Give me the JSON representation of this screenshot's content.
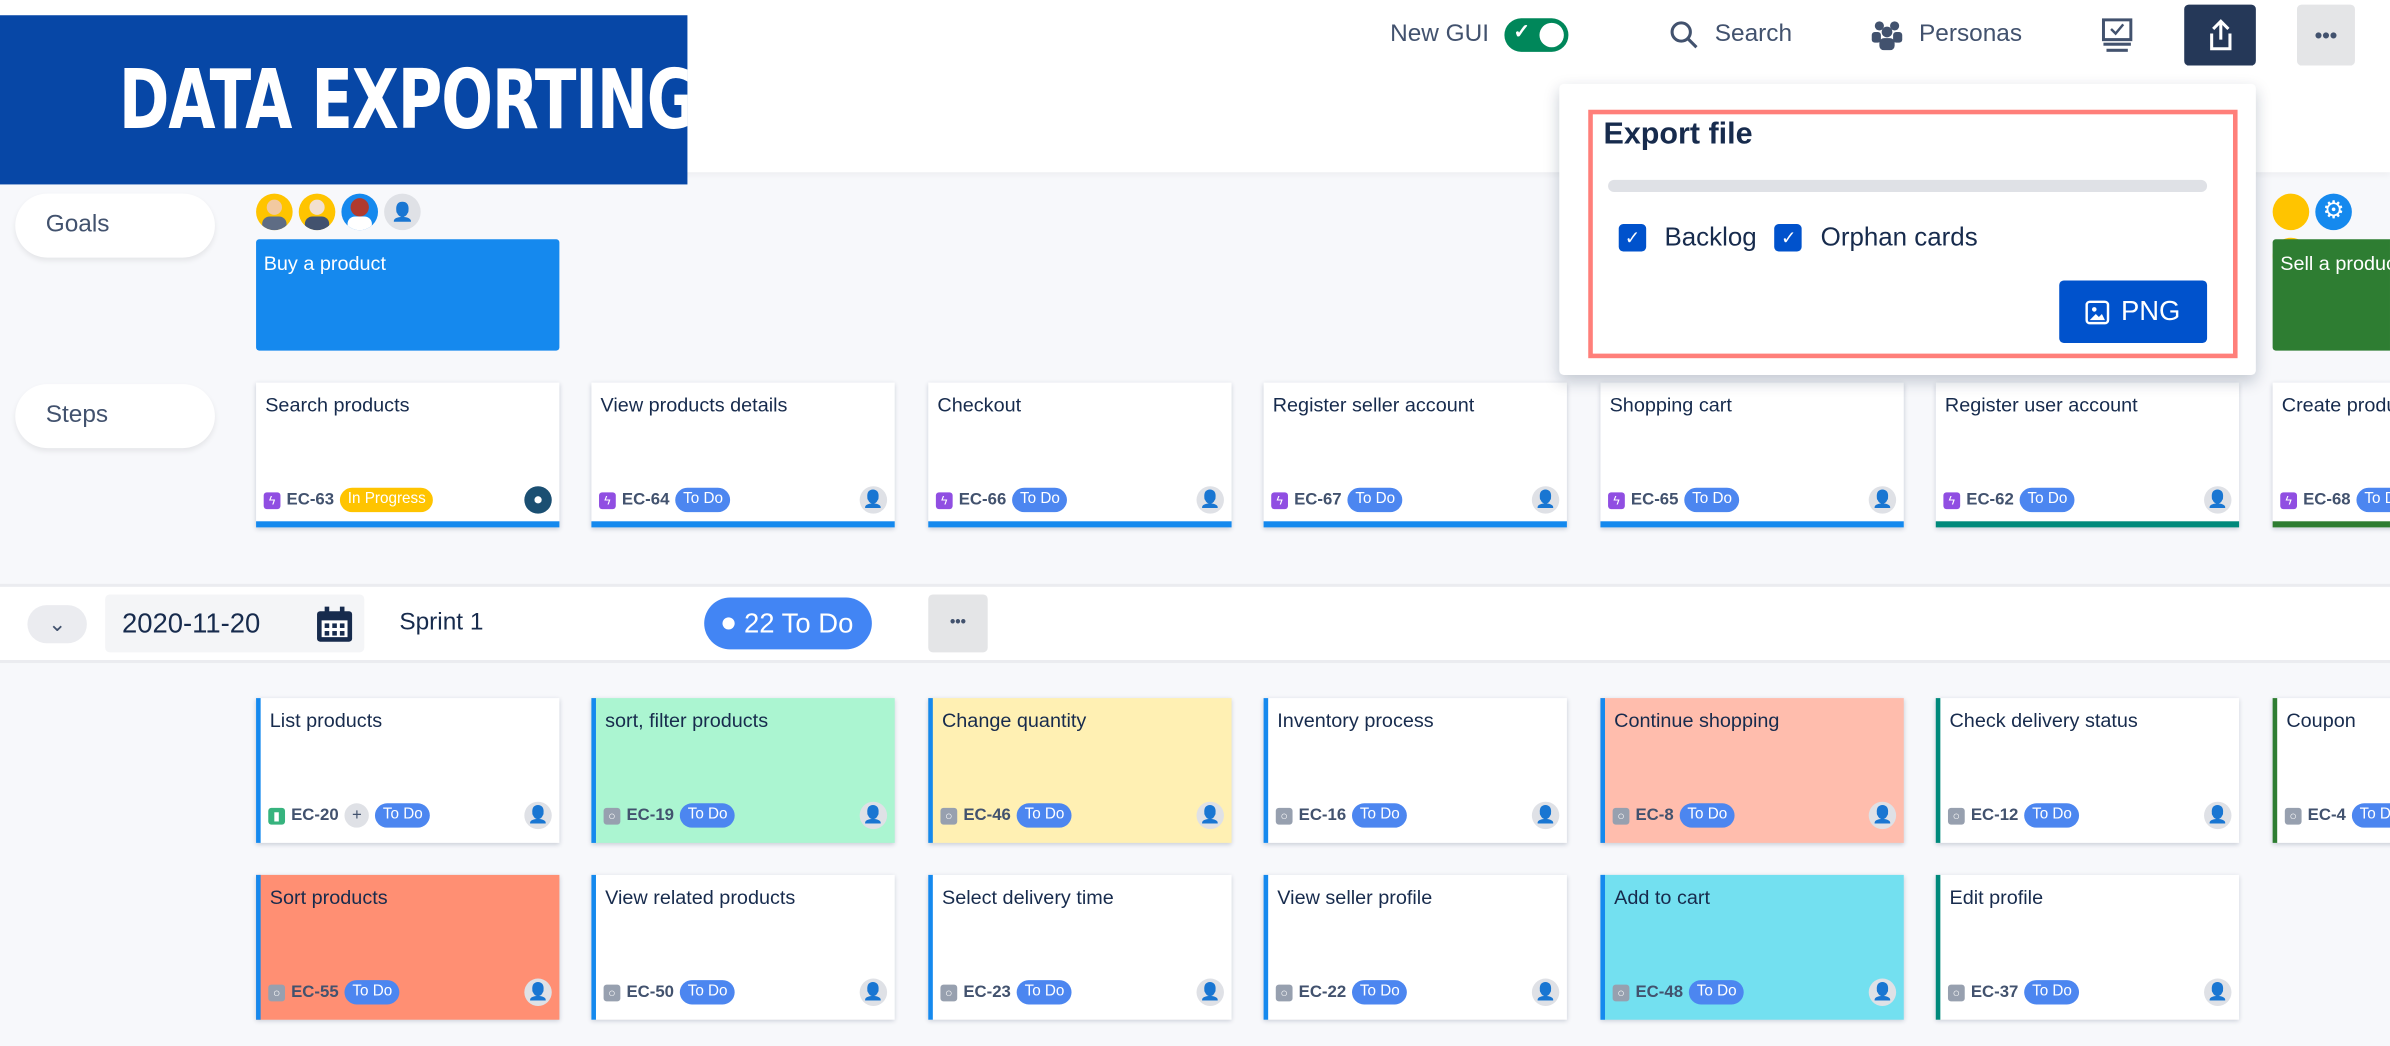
{
  "banner": {
    "title": "DATA EXPORTING"
  },
  "topbar": {
    "new_gui_label": "New GUI",
    "new_gui_enabled": true,
    "search_label": "Search",
    "personas_label": "Personas"
  },
  "rows": {
    "goals_label": "Goals",
    "steps_label": "Steps"
  },
  "goals": [
    {
      "title": "Buy a product",
      "color": "#1589ee"
    },
    {
      "title": "Sell a product",
      "color": "#2e7d32"
    }
  ],
  "steps": [
    {
      "title": "Search products",
      "key": "EC-63",
      "status": "In Progress",
      "status_color": "#ffc400",
      "bar": "#1589ee"
    },
    {
      "title": "View products details",
      "key": "EC-64",
      "status": "To Do",
      "status_color": "#4c86f0",
      "bar": "#1589ee"
    },
    {
      "title": "Checkout",
      "key": "EC-66",
      "status": "To Do",
      "status_color": "#4c86f0",
      "bar": "#1589ee"
    },
    {
      "title": "Register seller account",
      "key": "EC-67",
      "status": "To Do",
      "status_color": "#4c86f0",
      "bar": "#1589ee"
    },
    {
      "title": "Shopping cart",
      "key": "EC-65",
      "status": "To Do",
      "status_color": "#4c86f0",
      "bar": "#1589ee"
    },
    {
      "title": "Register user account",
      "key": "EC-62",
      "status": "To Do",
      "status_color": "#4c86f0",
      "bar": "#00897b"
    },
    {
      "title": "Create product",
      "key": "EC-68",
      "status": "To Do",
      "status_color": "#4c86f0",
      "bar": "#2e7d32"
    }
  ],
  "export_popup": {
    "title": "Export file",
    "progress": 0,
    "backlog_label": "Backlog",
    "backlog_checked": true,
    "orphan_label": "Orphan cards",
    "orphan_checked": true,
    "png_label": "PNG"
  },
  "sprint": {
    "date": "2020-11-20",
    "name": "Sprint 1",
    "count_label": "22 To Do"
  },
  "stories": [
    [
      {
        "title": "List products",
        "key": "EC-20",
        "type": "story",
        "status": "To Do",
        "bg": "#ffffff",
        "edge": "#1589ee",
        "plus": true
      },
      {
        "title": "sort, filter products",
        "key": "EC-19",
        "type": "task",
        "status": "To Do",
        "bg": "#abf5d1",
        "edge": "#1589ee"
      },
      {
        "title": "Change quantity",
        "key": "EC-46",
        "type": "task",
        "status": "To Do",
        "bg": "#fff0b3",
        "edge": "#1589ee"
      },
      {
        "title": "Inventory process",
        "key": "EC-16",
        "type": "task",
        "status": "To Do",
        "bg": "#ffffff",
        "edge": "#1589ee"
      },
      {
        "title": "Continue shopping",
        "key": "EC-8",
        "type": "task",
        "status": "To Do",
        "bg": "#ffbdad",
        "edge": "#1589ee"
      },
      {
        "title": "Check delivery status",
        "key": "EC-12",
        "type": "task",
        "status": "To Do",
        "bg": "#ffffff",
        "edge": "#00897b"
      },
      {
        "title": "Coupon",
        "key": "EC-4",
        "type": "task",
        "status": "To Do",
        "bg": "#ffffff",
        "edge": "#2e7d32"
      }
    ],
    [
      {
        "title": "Sort products",
        "key": "EC-55",
        "type": "task",
        "status": "To Do",
        "bg": "#ff8f73",
        "edge": "#1589ee"
      },
      {
        "title": "View related products",
        "key": "EC-50",
        "type": "task",
        "status": "To Do",
        "bg": "#ffffff",
        "edge": "#1589ee"
      },
      {
        "title": "Select delivery time",
        "key": "EC-23",
        "type": "task",
        "status": "To Do",
        "bg": "#ffffff",
        "edge": "#1589ee"
      },
      {
        "title": "View seller profile",
        "key": "EC-22",
        "type": "task",
        "status": "To Do",
        "bg": "#ffffff",
        "edge": "#1589ee"
      },
      {
        "title": "Add to cart",
        "key": "EC-48",
        "type": "task",
        "status": "To Do",
        "bg": "#73e0f0",
        "edge": "#1589ee"
      },
      {
        "title": "Edit profile",
        "key": "EC-37",
        "type": "task",
        "status": "To Do",
        "bg": "#ffffff",
        "edge": "#00897b"
      }
    ]
  ],
  "colors": {
    "banner": "#0747a6",
    "primary": "#0052cc",
    "highlight": "#ff7f7a",
    "toggle_on": "#00875a",
    "share_button": "#253858"
  }
}
